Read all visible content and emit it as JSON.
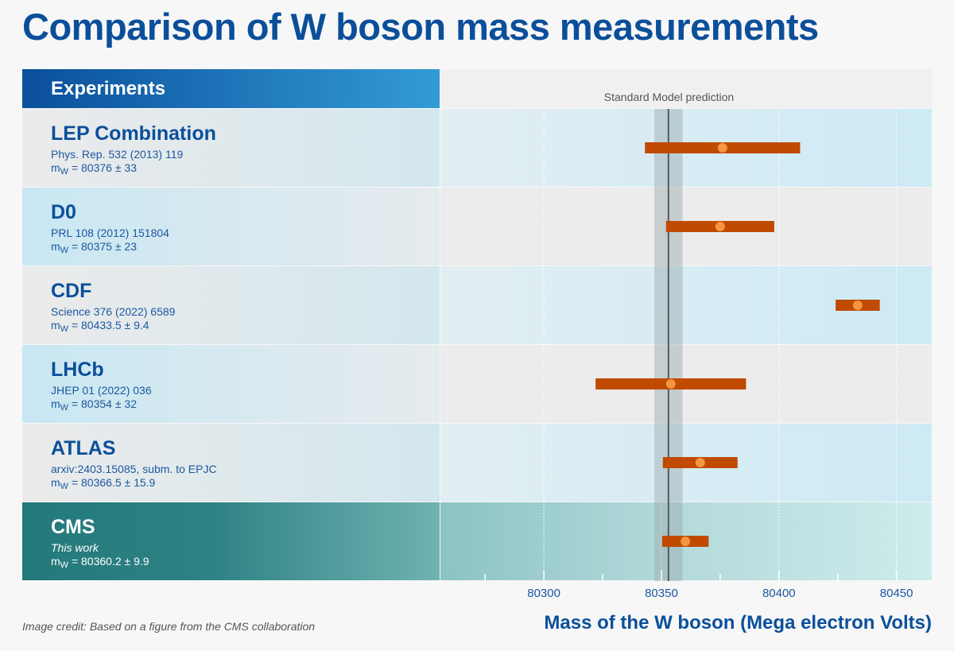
{
  "title": "Comparison of W boson mass measurements",
  "header": "Experiments",
  "sm_label": "Standard Model prediction",
  "credit": "Image credit: Based on a figure from the CMS collaboration",
  "chart_data": {
    "type": "errorbar",
    "title": "Comparison of W boson mass measurements",
    "xlabel": "Mass of the W boson (Mega electron Volts)",
    "xlim": [
      80256,
      80465
    ],
    "xticks": [
      80300,
      80350,
      80400,
      80450
    ],
    "standard_model": {
      "label": "Standard Model prediction",
      "value": 80353,
      "band": [
        80347,
        80359
      ]
    },
    "colors": {
      "bar": "#c04a00",
      "point": "#f39640",
      "sm_band": "#9aa8ad",
      "sm_line": "#555a5c"
    },
    "experiments": [
      {
        "name": "LEP Combination",
        "ref": "Phys. Rep. 532 (2013) 119",
        "mw_text": "= 80376 ± 33",
        "value": 80376,
        "error": 33
      },
      {
        "name": "D0",
        "ref": "PRL 108 (2012) 151804",
        "mw_text": "= 80375 ± 23",
        "value": 80375,
        "error": 23
      },
      {
        "name": "CDF",
        "ref": "Science 376 (2022) 6589",
        "mw_text": "= 80433.5 ± 9.4",
        "value": 80433.5,
        "error": 9.4
      },
      {
        "name": "LHCb",
        "ref": "JHEP 01 (2022) 036",
        "mw_text": "= 80354 ± 32",
        "value": 80354,
        "error": 32
      },
      {
        "name": "ATLAS",
        "ref": "arxiv:2403.15085, subm. to EPJC",
        "mw_text": "= 80366.5 ± 15.9",
        "value": 80366.5,
        "error": 15.9
      },
      {
        "name": "CMS",
        "ref": "This work",
        "mw_text": "= 80360.2 ± 9.9",
        "value": 80360.2,
        "error": 9.9
      }
    ],
    "mw_symbol": "m",
    "mw_subscript": "W"
  }
}
